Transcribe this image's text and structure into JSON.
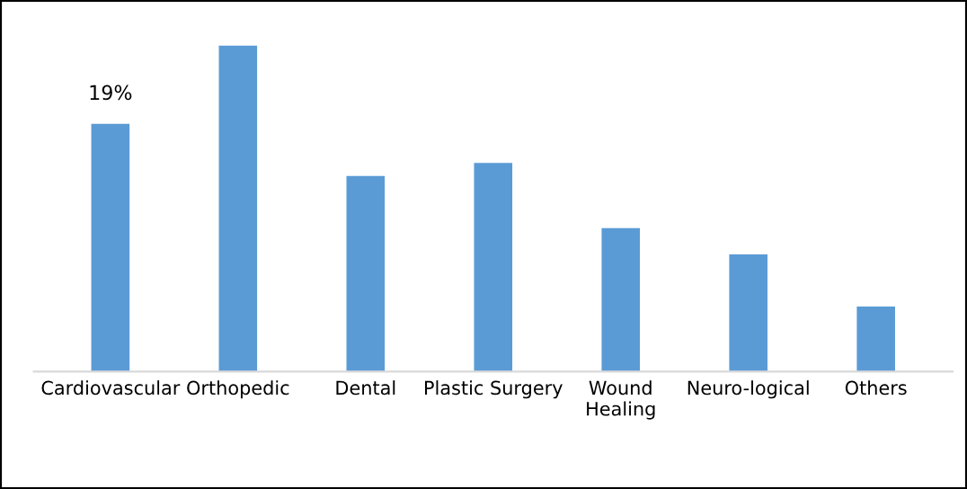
{
  "chart_data": {
    "type": "bar",
    "categories": [
      "Cardiovascular",
      "Orthopedic",
      "Dental",
      "Plastic Surgery",
      "Wound\nHealing",
      "Neuro-logical",
      "Others"
    ],
    "values": [
      19,
      25,
      15,
      16,
      11,
      9,
      5
    ],
    "value_labels": [
      "19%",
      null,
      null,
      null,
      null,
      null,
      null
    ],
    "color": "#5b9bd5",
    "grid": false,
    "legend": false
  }
}
